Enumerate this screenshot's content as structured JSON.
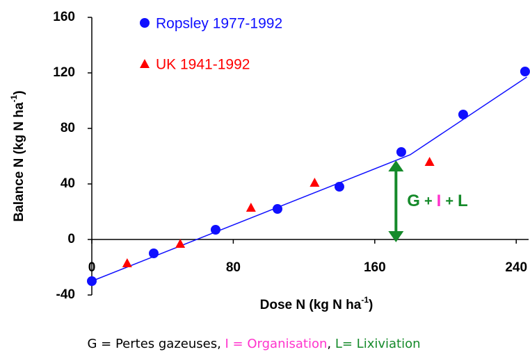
{
  "chart_data": {
    "type": "scatter",
    "xlabel": {
      "text": "Dose N (kg N ha",
      "sup": "-1",
      "end": ")"
    },
    "ylabel": {
      "text": "Balance N  (kg N ha",
      "sup": "-1",
      "end": ")"
    },
    "xlim": [
      0,
      247
    ],
    "xticks": [
      0,
      80,
      160,
      240
    ],
    "ylim": [
      -40,
      160
    ],
    "yticks": [
      -40,
      0,
      40,
      80,
      120,
      160
    ],
    "series": [
      {
        "name": "Ropsley 1977-1992",
        "color": "#1010ff",
        "marker": "circle",
        "x": [
          0,
          35,
          70,
          105,
          140,
          175,
          210,
          245
        ],
        "values": [
          -30,
          -10,
          7,
          22,
          38,
          63,
          90,
          121
        ]
      },
      {
        "name": "UK 1941-1992",
        "color": "#ff0000",
        "marker": "triangle",
        "x": [
          20,
          50,
          90,
          126,
          191
        ],
        "values": [
          -17,
          -3,
          23,
          41,
          56
        ]
      }
    ],
    "line": {
      "color": "#1010ff",
      "x": [
        0,
        180,
        246
      ],
      "values": [
        -30,
        61,
        117
      ]
    },
    "arrow": {
      "color": "#158a2a",
      "x": 172,
      "from": 0,
      "to": 55
    },
    "annotation": [
      {
        "text": "G",
        "color": "#158a2a"
      },
      {
        "text": "+",
        "color": "#158a2a"
      },
      {
        "text": "I",
        "color": "#ff33cc"
      },
      {
        "text": "+",
        "color": "#158a2a"
      },
      {
        "text": "L",
        "color": "#158a2a"
      }
    ],
    "footnote": [
      {
        "text": "G = Pertes gazeuses, ",
        "color": "#000000"
      },
      {
        "text": "I = Organisation",
        "color": "#ff33cc"
      },
      {
        "text": ", ",
        "color": "#000000"
      },
      {
        "text": "L= Lixiviation",
        "color": "#158a2a"
      }
    ]
  }
}
